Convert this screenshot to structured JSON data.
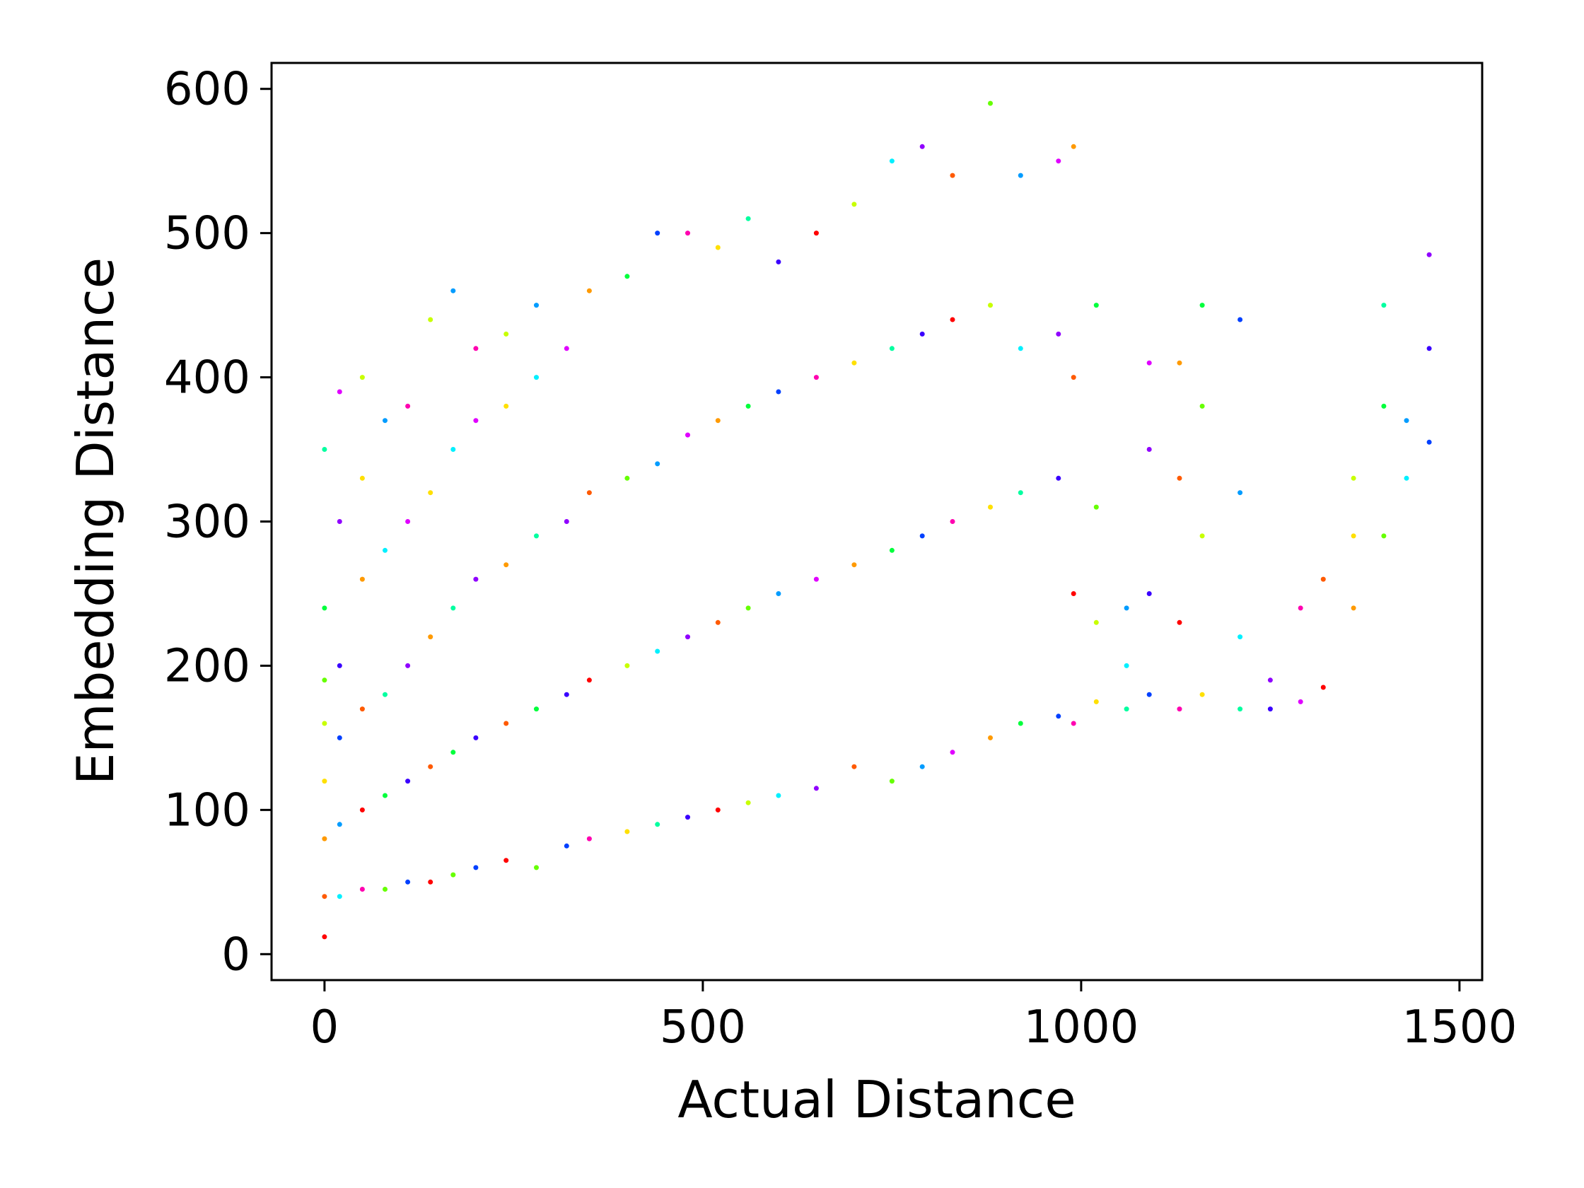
{
  "chart_data": {
    "type": "scatter",
    "title": "",
    "xlabel": "Actual Distance",
    "ylabel": "Embedding Distance",
    "xlim": [
      -70,
      1530
    ],
    "ylim": [
      -18,
      618
    ],
    "xticks": [
      0,
      500,
      1000,
      1500
    ],
    "yticks": [
      0,
      100,
      200,
      300,
      400,
      500,
      600
    ],
    "grid": false,
    "legend": "none",
    "colormap": "rainbow (hsv)",
    "colors": [
      "#ff0000",
      "#ff5a00",
      "#ff9a00",
      "#ffe000",
      "#c8ff00",
      "#66ff00",
      "#00ff3c",
      "#00ffa0",
      "#00f0ff",
      "#009cff",
      "#0040ff",
      "#3a00ff",
      "#9000ff",
      "#e000ff",
      "#ff00b0"
    ],
    "series": [
      {
        "points": [
          [
            0,
            12
          ],
          [
            0,
            40
          ],
          [
            0,
            80
          ],
          [
            0,
            120
          ],
          [
            0,
            160
          ],
          [
            0,
            190
          ],
          [
            0,
            240
          ],
          [
            0,
            350
          ],
          [
            20,
            40
          ],
          [
            20,
            90
          ],
          [
            20,
            150
          ],
          [
            20,
            200
          ],
          [
            20,
            300
          ],
          [
            20,
            390
          ],
          [
            50,
            45
          ],
          [
            50,
            100
          ],
          [
            50,
            170
          ],
          [
            50,
            260
          ],
          [
            50,
            330
          ],
          [
            50,
            400
          ],
          [
            80,
            45
          ],
          [
            80,
            110
          ],
          [
            80,
            180
          ],
          [
            80,
            280
          ],
          [
            80,
            370
          ],
          [
            110,
            50
          ],
          [
            110,
            120
          ],
          [
            110,
            200
          ],
          [
            110,
            300
          ],
          [
            110,
            380
          ],
          [
            140,
            50
          ],
          [
            140,
            130
          ],
          [
            140,
            220
          ],
          [
            140,
            320
          ],
          [
            140,
            440
          ],
          [
            170,
            55
          ],
          [
            170,
            140
          ],
          [
            170,
            240
          ],
          [
            170,
            350
          ],
          [
            170,
            460
          ],
          [
            200,
            60
          ],
          [
            200,
            150
          ],
          [
            200,
            260
          ],
          [
            200,
            370
          ],
          [
            200,
            420
          ],
          [
            240,
            65
          ],
          [
            240,
            160
          ],
          [
            240,
            270
          ],
          [
            240,
            380
          ],
          [
            240,
            430
          ],
          [
            280,
            60
          ],
          [
            280,
            170
          ],
          [
            280,
            290
          ],
          [
            280,
            400
          ],
          [
            280,
            450
          ],
          [
            320,
            75
          ],
          [
            320,
            180
          ],
          [
            320,
            300
          ],
          [
            320,
            420
          ],
          [
            350,
            80
          ],
          [
            350,
            190
          ],
          [
            350,
            320
          ],
          [
            350,
            460
          ],
          [
            400,
            85
          ],
          [
            400,
            200
          ],
          [
            400,
            330
          ],
          [
            400,
            470
          ],
          [
            440,
            90
          ],
          [
            440,
            210
          ],
          [
            440,
            340
          ],
          [
            440,
            500
          ],
          [
            480,
            95
          ],
          [
            480,
            220
          ],
          [
            480,
            360
          ],
          [
            480,
            500
          ],
          [
            520,
            100
          ],
          [
            520,
            230
          ],
          [
            520,
            370
          ],
          [
            520,
            490
          ],
          [
            560,
            105
          ],
          [
            560,
            240
          ],
          [
            560,
            380
          ],
          [
            560,
            510
          ],
          [
            600,
            110
          ],
          [
            600,
            250
          ],
          [
            600,
            390
          ],
          [
            600,
            480
          ],
          [
            650,
            115
          ],
          [
            650,
            260
          ],
          [
            650,
            400
          ],
          [
            650,
            500
          ],
          [
            700,
            130
          ],
          [
            700,
            270
          ],
          [
            700,
            410
          ],
          [
            700,
            520
          ],
          [
            750,
            120
          ],
          [
            750,
            280
          ],
          [
            750,
            420
          ],
          [
            750,
            550
          ],
          [
            790,
            130
          ],
          [
            790,
            290
          ],
          [
            790,
            430
          ],
          [
            790,
            560
          ],
          [
            830,
            140
          ],
          [
            830,
            300
          ],
          [
            830,
            440
          ],
          [
            830,
            540
          ],
          [
            880,
            150
          ],
          [
            880,
            310
          ],
          [
            880,
            450
          ],
          [
            880,
            590
          ],
          [
            920,
            160
          ],
          [
            920,
            320
          ],
          [
            920,
            420
          ],
          [
            920,
            540
          ],
          [
            970,
            165
          ],
          [
            970,
            330
          ],
          [
            970,
            430
          ],
          [
            970,
            550
          ],
          [
            990,
            160
          ],
          [
            990,
            250
          ],
          [
            990,
            400
          ],
          [
            990,
            560
          ],
          [
            1020,
            175
          ],
          [
            1020,
            230
          ],
          [
            1020,
            310
          ],
          [
            1020,
            450
          ],
          [
            1060,
            170
          ],
          [
            1060,
            200
          ],
          [
            1060,
            240
          ],
          [
            1090,
            180
          ],
          [
            1090,
            250
          ],
          [
            1090,
            350
          ],
          [
            1090,
            410
          ],
          [
            1130,
            170
          ],
          [
            1130,
            230
          ],
          [
            1130,
            330
          ],
          [
            1130,
            410
          ],
          [
            1160,
            180
          ],
          [
            1160,
            290
          ],
          [
            1160,
            380
          ],
          [
            1160,
            450
          ],
          [
            1210,
            170
          ],
          [
            1210,
            220
          ],
          [
            1210,
            320
          ],
          [
            1210,
            440
          ],
          [
            1250,
            170
          ],
          [
            1250,
            190
          ],
          [
            1290,
            175
          ],
          [
            1290,
            240
          ],
          [
            1320,
            185
          ],
          [
            1320,
            260
          ],
          [
            1360,
            240
          ],
          [
            1360,
            290
          ],
          [
            1360,
            330
          ],
          [
            1400,
            290
          ],
          [
            1400,
            380
          ],
          [
            1400,
            450
          ],
          [
            1430,
            330
          ],
          [
            1430,
            370
          ],
          [
            1460,
            355
          ],
          [
            1460,
            420
          ],
          [
            1460,
            485
          ]
        ]
      }
    ]
  }
}
